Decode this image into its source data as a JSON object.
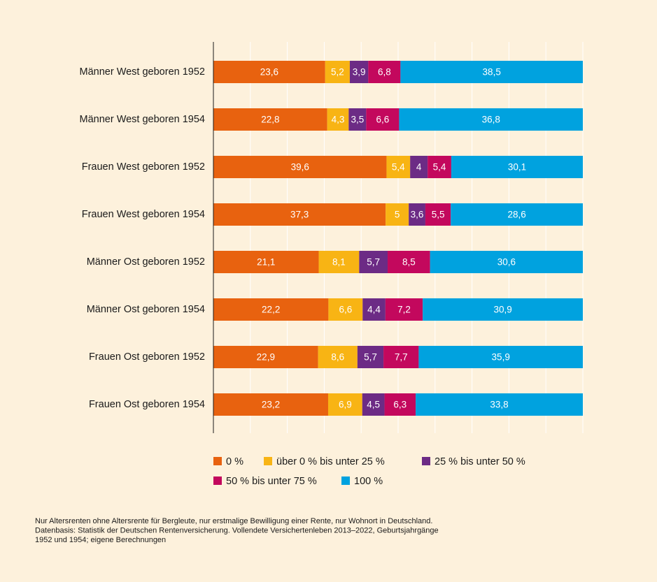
{
  "chart_data": {
    "type": "bar",
    "orientation": "horizontal",
    "stacking": "percent",
    "categories": [
      "Männer West geboren 1952",
      "Männer West geboren 1954",
      "Frauen West geboren 1952",
      "Frauen West geboren 1954",
      "Männer Ost geboren 1952",
      "Männer Ost geboren 1954",
      "Frauen Ost geboren 1952",
      "Frauen Ost geboren 1954"
    ],
    "series": [
      {
        "name": "0 %",
        "color": "#e8620f",
        "values": [
          23.6,
          22.8,
          39.6,
          37.3,
          21.1,
          22.2,
          22.9,
          23.2
        ],
        "value_labels": [
          "23,6",
          "22,8",
          "39,6",
          "37,3",
          "21,1",
          "22,2",
          "22,9",
          "23,2"
        ]
      },
      {
        "name": "über 0 % bis unter 25 %",
        "color": "#f8b414",
        "values": [
          5.2,
          4.3,
          5.4,
          5,
          8.1,
          6.6,
          8.6,
          6.9
        ],
        "value_labels": [
          "5,2",
          "4,3",
          "5,4",
          "5",
          "8,1",
          "6,6",
          "8,6",
          "6,9"
        ]
      },
      {
        "name": "25 % bis unter 50 %",
        "color": "#6c2b85",
        "values": [
          3.9,
          3.5,
          4,
          3.6,
          5.7,
          4.4,
          5.7,
          4.5
        ],
        "value_labels": [
          "3,9",
          "3,5",
          "4",
          "3,6",
          "5,7",
          "4,4",
          "5,7",
          "4,5"
        ]
      },
      {
        "name": "50 % bis unter 75 %",
        "color": "#c3085d",
        "values": [
          6.8,
          6.6,
          5.4,
          5.5,
          8.5,
          7.2,
          7.7,
          6.3
        ],
        "value_labels": [
          "6,8",
          "6,6",
          "5,4",
          "5,5",
          "8,5",
          "7,2",
          "7,7",
          "6,3"
        ]
      },
      {
        "name": "100 %",
        "color": "#00a2df",
        "values": [
          38.5,
          36.8,
          30.1,
          28.6,
          30.6,
          30.9,
          35.9,
          33.8
        ],
        "value_labels": [
          "38,5",
          "36,8",
          "30,1",
          "28,6",
          "30,6",
          "30,9",
          "35,9",
          "33,8"
        ]
      }
    ],
    "xlim": [
      0,
      100
    ],
    "xticks": [
      0,
      10,
      20,
      30,
      40,
      50,
      60,
      70,
      80,
      90,
      100
    ],
    "grid": true,
    "footnote": [
      "Nur Altersrenten ohne Altersrente für Bergleute, nur erstmalige Bewilligung einer Rente, nur Wohnort in Deutschland.",
      "Datenbasis: Statistik der Deutschen Rentenversicherung. Vollendete Versichertenleben 2013–2022, Geburtsjahrgänge",
      "1952 und 1954; eigene Berechnungen"
    ]
  }
}
